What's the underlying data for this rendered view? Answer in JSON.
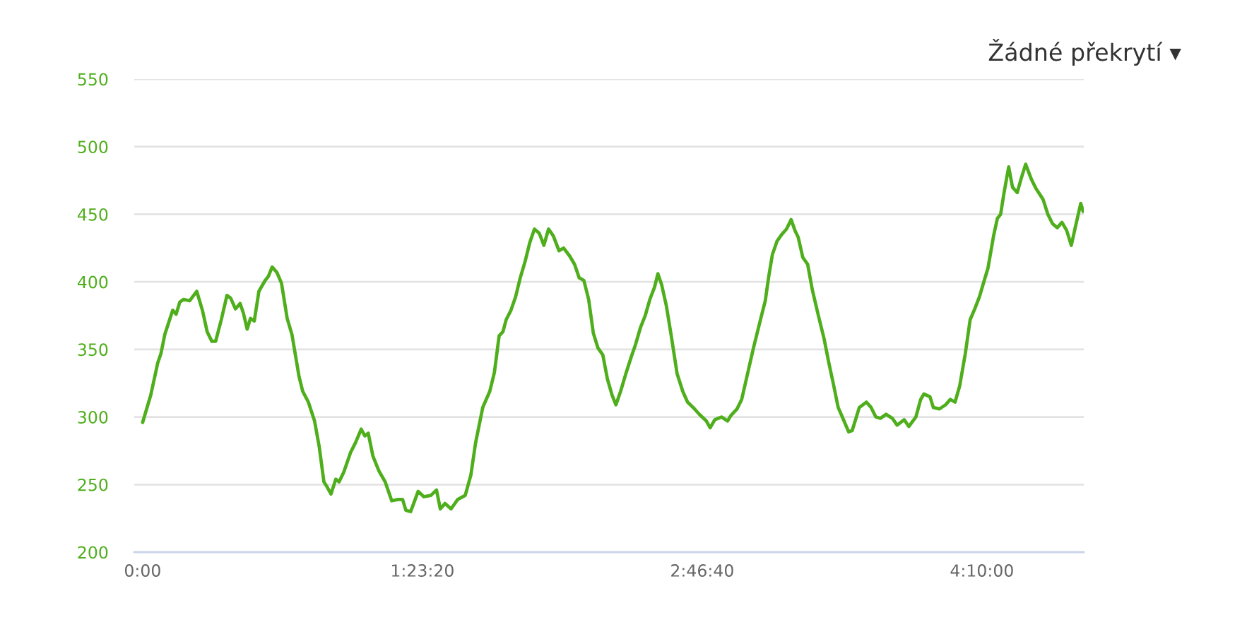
{
  "chart_data": {
    "type": "line",
    "x": [
      0,
      144,
      270,
      328,
      396,
      538,
      598,
      664,
      732,
      841,
      967,
      1068,
      1154,
      1237,
      1305,
      1406,
      1507,
      1573,
      1659,
      1742,
      1800,
      1869,
      1927,
      1995,
      2078,
      2189,
      2247,
      2315,
      2399,
      2482,
      2583,
      2669,
      2795,
      2861,
      2962,
      3073,
      3156,
      3240,
      3300,
      3366,
      3452,
      3510,
      3593,
      3719,
      3805,
      3906,
      3972,
      4032,
      4116,
      4224,
      4335,
      4452,
      4563,
      4646,
      4704,
      4790,
      4924,
      5025,
      5151,
      5252,
      5320,
      5404,
      5512,
      5631,
      5765,
      5866,
      5951,
      6078,
      6204,
      6287,
      6371,
      6439,
      6497,
      6583,
      6666,
      6749,
      6835,
      6919,
      7002,
      7088,
      7171,
      7254,
      7340,
      7441,
      7525,
      7633,
      7719,
      7802,
      7886,
      7971,
      8055,
      8138,
      8224,
      8307,
      8391,
      8459,
      8542,
      8643,
      8729,
      8812,
      8896,
      8982,
      9065,
      9148,
      9209,
      9275,
      9361,
      9444,
      9552,
      9653,
      9739,
      9840,
      9949,
      10075,
      10143,
      10226,
      10345,
      10454,
      10512,
      10623,
      10706,
      10789,
      10916,
      11042,
      11128,
      11186,
      11254,
      11337,
      11421,
      11506,
      11590,
      11658,
      11716,
      11799,
      11885,
      11969,
      12077,
      12178,
      12264,
      12347,
      12431,
      12515,
      12618,
      12681,
      12808,
      12934,
      13020,
      13103,
      13186,
      13287,
      13398,
      13484,
      13610,
      13693,
      13819,
      13905,
      13963,
      14071,
      14132,
      14241,
      14349,
      14435,
      14519,
      14602,
      14703,
      14789,
      14872,
      14956,
      15041,
      15107,
      15208,
      15276,
      15334,
      15395,
      15478,
      15546,
      15630,
      15698,
      15781,
      15882,
      15966,
      16092,
      16178,
      16261,
      16345,
      16430,
      16514,
      16597,
      16683,
      16766,
      16809
    ],
    "series": [
      {
        "color": "#4fae1c",
        "values": [
          296,
          316,
          340,
          347,
          361,
          379,
          376,
          385,
          387,
          386,
          393,
          379,
          363,
          356,
          356,
          372,
          390,
          388,
          380,
          384,
          377,
          365,
          373,
          371,
          393,
          401,
          404,
          411,
          407,
          399,
          373,
          361,
          330,
          319,
          311,
          297,
          278,
          252,
          248,
          243,
          254,
          252,
          259,
          274,
          281,
          291,
          286,
          288,
          271,
          260,
          252,
          238,
          239,
          239,
          231,
          230,
          245,
          241,
          242,
          246,
          232,
          236,
          232,
          239,
          242,
          257,
          281,
          307,
          319,
          333,
          360,
          363,
          372,
          379,
          389,
          403,
          415,
          429,
          439,
          436,
          427,
          439,
          434,
          423,
          425,
          419,
          413,
          403,
          401,
          387,
          362,
          351,
          346,
          328,
          316,
          309,
          319,
          333,
          344,
          354,
          366,
          375,
          387,
          396,
          406,
          398,
          382,
          361,
          332,
          319,
          311,
          307,
          302,
          297,
          292,
          298,
          300,
          297,
          301,
          306,
          313,
          328,
          351,
          372,
          386,
          403,
          420,
          430,
          435,
          439,
          446,
          438,
          433,
          418,
          413,
          394,
          375,
          358,
          340,
          324,
          307,
          299,
          289,
          290,
          307,
          311,
          307,
          300,
          299,
          302,
          299,
          294,
          298,
          293,
          300,
          313,
          317,
          315,
          307,
          306,
          309,
          313,
          311,
          323,
          347,
          372,
          380,
          389,
          401,
          410,
          434,
          447,
          450,
          466,
          485,
          470,
          466,
          476,
          487,
          476,
          469,
          461,
          450,
          443,
          440,
          444,
          438,
          427,
          443,
          458,
          452
        ]
      }
    ],
    "xlim": [
      -150,
      16820
    ],
    "xticks": [
      {
        "value": 0,
        "label": "0:00"
      },
      {
        "value": 5000,
        "label": "1:23:20"
      },
      {
        "value": 10000,
        "label": "2:46:40"
      },
      {
        "value": 15000,
        "label": "4:10:00"
      }
    ],
    "ylim": [
      200,
      550
    ],
    "yticks": [
      200,
      250,
      300,
      350,
      400,
      450,
      500,
      550
    ],
    "grid": "y",
    "line_style": "solid",
    "annotations": [
      "Žádné překrytí ▾"
    ]
  }
}
